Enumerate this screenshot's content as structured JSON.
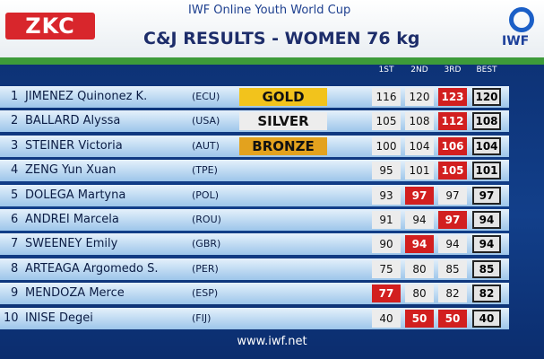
{
  "header": {
    "logo_left": "ZKC",
    "event": "IWF Online Youth World Cup",
    "title": "C&J RESULTS - WOMEN 76 kg",
    "logo_right": "IWF"
  },
  "table": {
    "columns": [
      "1ST",
      "2ND",
      "3RD",
      "BEST"
    ],
    "rows": [
      {
        "rank": 1,
        "name": "JIMENEZ Quinonez K.",
        "country": "(ECU)",
        "medal": "GOLD",
        "medal_color": "#f2c31c",
        "attempts": [
          116,
          120,
          123
        ],
        "attempt_colors": [
          "#ececec",
          "#ececec",
          "#d21f1f"
        ],
        "best": 120
      },
      {
        "rank": 2,
        "name": "BALLARD Alyssa",
        "country": "(USA)",
        "medal": "SILVER",
        "medal_color": "#ededed",
        "attempts": [
          105,
          108,
          112
        ],
        "attempt_colors": [
          "#ececec",
          "#ececec",
          "#d21f1f"
        ],
        "best": 108
      },
      {
        "rank": 3,
        "name": "STEINER Victoria",
        "country": "(AUT)",
        "medal": "BRONZE",
        "medal_color": "#e3a21e",
        "attempts": [
          100,
          104,
          106
        ],
        "attempt_colors": [
          "#ececec",
          "#ececec",
          "#d21f1f"
        ],
        "best": 104
      },
      {
        "rank": 4,
        "name": "ZENG Yun Xuan",
        "country": "(TPE)",
        "attempts": [
          95,
          101,
          105
        ],
        "attempt_colors": [
          "#ececec",
          "#ececec",
          "#d21f1f"
        ],
        "best": 101
      },
      {
        "rank": 5,
        "name": "DOLEGA Martyna",
        "country": "(POL)",
        "attempts": [
          93,
          97,
          97
        ],
        "attempt_colors": [
          "#ececec",
          "#d21f1f",
          "#ececec"
        ],
        "best": 97
      },
      {
        "rank": 6,
        "name": "ANDREI Marcela",
        "country": "(ROU)",
        "attempts": [
          91,
          94,
          97
        ],
        "attempt_colors": [
          "#ececec",
          "#ececec",
          "#d21f1f"
        ],
        "best": 94
      },
      {
        "rank": 7,
        "name": "SWEENEY Emily",
        "country": "(GBR)",
        "attempts": [
          90,
          94,
          94
        ],
        "attempt_colors": [
          "#ececec",
          "#d21f1f",
          "#ececec"
        ],
        "best": 94
      },
      {
        "rank": 8,
        "name": "ARTEAGA Argomedo S.",
        "country": "(PER)",
        "attempts": [
          75,
          80,
          85
        ],
        "attempt_colors": [
          "#ececec",
          "#ececec",
          "#ececec"
        ],
        "best": 85
      },
      {
        "rank": 9,
        "name": "MENDOZA Merce",
        "country": "(ESP)",
        "attempts": [
          77,
          80,
          82
        ],
        "attempt_colors": [
          "#d21f1f",
          "#ececec",
          "#ececec"
        ],
        "best": 82
      },
      {
        "rank": 10,
        "name": "INISE Degei",
        "country": "(FIJ)",
        "attempts": [
          40,
          50,
          50
        ],
        "attempt_colors": [
          "#ececec",
          "#d21f1f",
          "#d21f1f"
        ],
        "best": 40
      }
    ]
  },
  "footer": {
    "url": "www.iwf.net"
  }
}
